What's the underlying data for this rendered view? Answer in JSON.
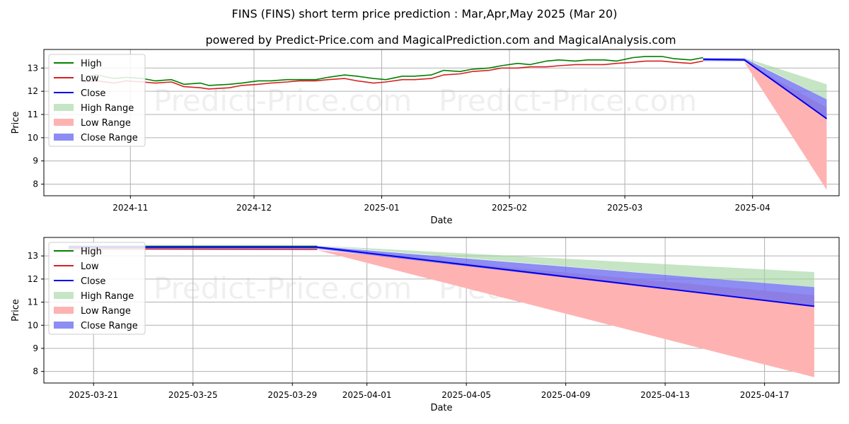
{
  "title": "FINS (FINS) short term price prediction : Mar,Apr,May 2025 (Mar 20)",
  "subtitle": "powered by Predict-Price.com and MagicalPrediction.com and MagicalAnalysis.com",
  "watermark": "Predict-Price.com",
  "colors": {
    "high": "#008000",
    "low": "#d62020",
    "close": "#0000ee",
    "high_range": "#9fd49f",
    "low_range": "#ffb2b2",
    "close_range": "#7070f0"
  },
  "chart_data": [
    {
      "type": "line",
      "xlabel": "Date",
      "ylabel": "Price",
      "ylim": [
        7.5,
        13.8
      ],
      "yticks": [
        8,
        9,
        10,
        11,
        12,
        13
      ],
      "xlim": [
        "2024-10-11",
        "2025-04-22"
      ],
      "xticks": [
        "2024-11-01",
        "2024-12-01",
        "2025-01-01",
        "2025-02-01",
        "2025-03-01",
        "2025-04-01"
      ],
      "xtick_labels": [
        "2024-11",
        "2024-12",
        "2025-01",
        "2025-02",
        "2025-03",
        "2025-04"
      ],
      "grid": true,
      "legend": "top-left",
      "legend_labels": [
        "High",
        "Low",
        "Close",
        "High Range",
        "Low Range",
        "Close Range"
      ],
      "series": [
        {
          "name": "High",
          "points": [
            [
              "2024-10-21",
              12.65
            ],
            [
              "2024-10-24",
              12.7
            ],
            [
              "2024-10-28",
              12.55
            ],
            [
              "2024-10-31",
              12.6
            ],
            [
              "2024-11-04",
              12.55
            ],
            [
              "2024-11-07",
              12.45
            ],
            [
              "2024-11-11",
              12.5
            ],
            [
              "2024-11-14",
              12.3
            ],
            [
              "2024-11-18",
              12.35
            ],
            [
              "2024-11-20",
              12.25
            ],
            [
              "2024-11-25",
              12.3
            ],
            [
              "2024-11-28",
              12.35
            ],
            [
              "2024-12-02",
              12.45
            ],
            [
              "2024-12-05",
              12.45
            ],
            [
              "2024-12-09",
              12.5
            ],
            [
              "2024-12-12",
              12.5
            ],
            [
              "2024-12-16",
              12.5
            ],
            [
              "2024-12-19",
              12.6
            ],
            [
              "2024-12-23",
              12.7
            ],
            [
              "2024-12-26",
              12.65
            ],
            [
              "2024-12-30",
              12.55
            ],
            [
              "2025-01-02",
              12.5
            ],
            [
              "2025-01-06",
              12.65
            ],
            [
              "2025-01-09",
              12.65
            ],
            [
              "2025-01-13",
              12.7
            ],
            [
              "2025-01-16",
              12.9
            ],
            [
              "2025-01-20",
              12.85
            ],
            [
              "2025-01-23",
              12.95
            ],
            [
              "2025-01-27",
              13.0
            ],
            [
              "2025-01-30",
              13.1
            ],
            [
              "2025-02-03",
              13.2
            ],
            [
              "2025-02-06",
              13.15
            ],
            [
              "2025-02-10",
              13.3
            ],
            [
              "2025-02-13",
              13.35
            ],
            [
              "2025-02-17",
              13.3
            ],
            [
              "2025-02-20",
              13.35
            ],
            [
              "2025-02-24",
              13.35
            ],
            [
              "2025-02-27",
              13.3
            ],
            [
              "2025-03-03",
              13.45
            ],
            [
              "2025-03-06",
              13.5
            ],
            [
              "2025-03-10",
              13.5
            ],
            [
              "2025-03-13",
              13.4
            ],
            [
              "2025-03-17",
              13.35
            ],
            [
              "2025-03-20",
              13.45
            ]
          ]
        },
        {
          "name": "Low",
          "points": [
            [
              "2024-10-21",
              12.4
            ],
            [
              "2024-10-24",
              12.45
            ],
            [
              "2024-10-28",
              12.35
            ],
            [
              "2024-10-31",
              12.45
            ],
            [
              "2024-11-04",
              12.4
            ],
            [
              "2024-11-07",
              12.35
            ],
            [
              "2024-11-11",
              12.4
            ],
            [
              "2024-11-14",
              12.2
            ],
            [
              "2024-11-18",
              12.15
            ],
            [
              "2024-11-20",
              12.1
            ],
            [
              "2024-11-25",
              12.15
            ],
            [
              "2024-11-28",
              12.25
            ],
            [
              "2024-12-02",
              12.3
            ],
            [
              "2024-12-05",
              12.35
            ],
            [
              "2024-12-09",
              12.4
            ],
            [
              "2024-12-12",
              12.45
            ],
            [
              "2024-12-16",
              12.45
            ],
            [
              "2024-12-19",
              12.5
            ],
            [
              "2024-12-23",
              12.55
            ],
            [
              "2024-12-26",
              12.45
            ],
            [
              "2024-12-30",
              12.35
            ],
            [
              "2025-01-02",
              12.4
            ],
            [
              "2025-01-06",
              12.5
            ],
            [
              "2025-01-09",
              12.5
            ],
            [
              "2025-01-13",
              12.55
            ],
            [
              "2025-01-16",
              12.7
            ],
            [
              "2025-01-20",
              12.75
            ],
            [
              "2025-01-23",
              12.85
            ],
            [
              "2025-01-27",
              12.9
            ],
            [
              "2025-01-30",
              13.0
            ],
            [
              "2025-02-03",
              13.0
            ],
            [
              "2025-02-06",
              13.05
            ],
            [
              "2025-02-10",
              13.05
            ],
            [
              "2025-02-13",
              13.1
            ],
            [
              "2025-02-17",
              13.15
            ],
            [
              "2025-02-20",
              13.15
            ],
            [
              "2025-02-24",
              13.15
            ],
            [
              "2025-02-27",
              13.2
            ],
            [
              "2025-03-03",
              13.25
            ],
            [
              "2025-03-06",
              13.3
            ],
            [
              "2025-03-10",
              13.3
            ],
            [
              "2025-03-13",
              13.25
            ],
            [
              "2025-03-17",
              13.2
            ],
            [
              "2025-03-20",
              13.3
            ]
          ]
        },
        {
          "name": "Close",
          "points": [
            [
              "2025-03-20",
              13.38
            ],
            [
              "2025-03-30",
              13.35
            ],
            [
              "2025-04-19",
              10.82
            ]
          ]
        }
      ],
      "ranges": [
        {
          "name": "High Range",
          "points": [
            [
              "2025-03-20",
              13.45,
              13.45
            ],
            [
              "2025-03-30",
              13.45,
              13.45
            ],
            [
              "2025-04-19",
              11.65,
              12.3
            ]
          ]
        },
        {
          "name": "Low Range",
          "points": [
            [
              "2025-03-20",
              13.25,
              13.25
            ],
            [
              "2025-03-30",
              13.25,
              13.25
            ],
            [
              "2025-04-19",
              7.75,
              11.3
            ]
          ]
        },
        {
          "name": "Close Range",
          "points": [
            [
              "2025-03-20",
              13.3,
              13.42
            ],
            [
              "2025-03-30",
              13.3,
              13.42
            ],
            [
              "2025-04-19",
              10.82,
              11.65
            ]
          ]
        }
      ]
    },
    {
      "type": "line",
      "xlabel": "Date",
      "ylabel": "Price",
      "ylim": [
        7.5,
        13.8
      ],
      "yticks": [
        8,
        9,
        10,
        11,
        12,
        13
      ],
      "xlim": [
        "2025-03-19",
        "2025-04-20"
      ],
      "xticks": [
        "2025-03-21",
        "2025-03-25",
        "2025-03-29",
        "2025-04-01",
        "2025-04-05",
        "2025-04-09",
        "2025-04-13",
        "2025-04-17"
      ],
      "xtick_labels": [
        "2025-03-21",
        "2025-03-25",
        "2025-03-29",
        "2025-04-01",
        "2025-04-05",
        "2025-04-09",
        "2025-04-13",
        "2025-04-17"
      ],
      "grid": true,
      "legend": "top-left",
      "legend_labels": [
        "High",
        "Low",
        "Close",
        "High Range",
        "Low Range",
        "Close Range"
      ],
      "series": [
        {
          "name": "High",
          "points": [
            [
              "2025-03-20",
              13.42
            ],
            [
              "2025-03-30",
              13.42
            ]
          ]
        },
        {
          "name": "Low",
          "points": [
            [
              "2025-03-20",
              13.3
            ],
            [
              "2025-03-30",
              13.28
            ]
          ]
        },
        {
          "name": "Close",
          "points": [
            [
              "2025-03-20",
              13.38
            ],
            [
              "2025-03-30",
              13.38
            ],
            [
              "2025-04-19",
              10.82
            ]
          ]
        }
      ],
      "ranges": [
        {
          "name": "High Range",
          "points": [
            [
              "2025-03-20",
              13.45,
              13.45
            ],
            [
              "2025-03-30",
              13.45,
              13.45
            ],
            [
              "2025-04-19",
              11.65,
              12.3
            ]
          ]
        },
        {
          "name": "Low Range",
          "points": [
            [
              "2025-03-20",
              13.25,
              13.25
            ],
            [
              "2025-03-30",
              13.25,
              13.25
            ],
            [
              "2025-04-19",
              7.75,
              11.3
            ]
          ]
        },
        {
          "name": "Close Range",
          "points": [
            [
              "2025-03-20",
              13.3,
              13.42
            ],
            [
              "2025-03-30",
              13.3,
              13.42
            ],
            [
              "2025-04-19",
              10.82,
              11.65
            ]
          ]
        }
      ]
    }
  ]
}
